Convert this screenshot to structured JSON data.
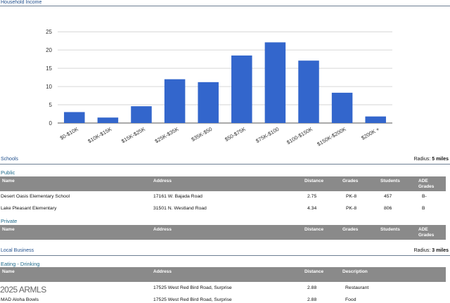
{
  "household_income": {
    "title": "Household Income",
    "chart_data": {
      "type": "bar",
      "title": "",
      "xlabel": "",
      "ylabel": "",
      "categories": [
        "$0-$10K",
        "$10K-$15K",
        "$15K-$25K",
        "$25K-$35K",
        "$35K-$50",
        "$50-$75K",
        "$75K-$100",
        "$100-$150K",
        "$150K-$200K",
        "$200K +"
      ],
      "values": [
        3,
        1.5,
        4.6,
        12,
        11.2,
        18.5,
        22.1,
        17.1,
        8.3,
        1.8
      ],
      "yticks": [
        0,
        5,
        10,
        15,
        20,
        25
      ],
      "ylim": [
        0,
        26
      ],
      "grid": true,
      "bar_color": "#3366cc"
    }
  },
  "schools": {
    "title": "Schools",
    "radius_label": "Radius:",
    "radius_value": "5 miles",
    "public": {
      "label": "Public",
      "headers": [
        "Name",
        "Address",
        "Distance",
        "Grades",
        "Students",
        "ADE Grades"
      ],
      "rows": [
        [
          "Desert Oasis Elementary School",
          "17161 W. Bajada Road",
          "2.75",
          "PK-8",
          "457",
          "B-"
        ],
        [
          "Lake Pleasant Elementary",
          "31501 N. Westland Road",
          "4.34",
          "PK-8",
          "806",
          "B"
        ]
      ]
    },
    "private": {
      "label": "Private",
      "headers": [
        "Name",
        "Address",
        "Distance",
        "Grades",
        "Students",
        "ADE Grades"
      ]
    }
  },
  "local_business": {
    "title": "Local Business",
    "radius_label": "Radius:",
    "radius_value": "3 miles",
    "eating": {
      "label": "Eating - Drinking",
      "headers": [
        "Name",
        "Address",
        "Distance",
        "Description"
      ],
      "rows": [
        [
          "",
          "17525 West Red Bird Road, Surprise",
          "2.88",
          "Restaurant"
        ],
        [
          "MAD Aloha Bowls",
          "17525 West Red Bird Road, Surprise",
          "2.88",
          "Food"
        ]
      ]
    }
  },
  "watermark": "2025 ARMLS"
}
